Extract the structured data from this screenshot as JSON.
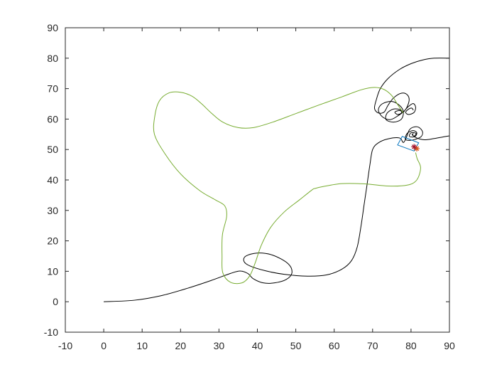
{
  "chart_data": {
    "type": "line",
    "title": "",
    "xlabel": "",
    "ylabel": "",
    "xlim": [
      -10,
      90
    ],
    "ylim": [
      -10,
      90
    ],
    "xticks": [
      -10,
      0,
      10,
      20,
      30,
      40,
      50,
      60,
      70,
      80,
      90
    ],
    "yticks": [
      -10,
      0,
      10,
      20,
      30,
      40,
      50,
      60,
      70,
      80,
      90
    ],
    "xtick_labels": [
      "-10",
      "0",
      "10",
      "20",
      "30",
      "40",
      "50",
      "60",
      "70",
      "80",
      "90"
    ],
    "ytick_labels": [
      "-10",
      "0",
      "10",
      "20",
      "30",
      "40",
      "50",
      "60",
      "70",
      "80",
      "90"
    ],
    "grid": false,
    "legend": "none",
    "series": [
      {
        "color": "#000000",
        "points": [
          [
            0,
            0
          ],
          [
            8,
            0.5
          ],
          [
            15,
            2
          ],
          [
            22,
            4.5
          ],
          [
            28,
            7
          ],
          [
            33,
            9.3
          ],
          [
            35.5,
            10.1
          ],
          [
            37.5,
            9.3
          ],
          [
            39,
            7.5
          ],
          [
            41.5,
            6.2
          ],
          [
            44.5,
            6.2
          ],
          [
            47.5,
            7.3
          ],
          [
            49,
            9.5
          ],
          [
            48,
            12.5
          ],
          [
            44,
            15.3
          ],
          [
            40,
            16
          ],
          [
            37,
            15
          ],
          [
            36.5,
            13.3
          ],
          [
            38,
            11.8
          ],
          [
            42,
            10.2
          ],
          [
            47,
            9
          ],
          [
            53,
            8.4
          ],
          [
            58,
            8.8
          ],
          [
            62,
            10.7
          ],
          [
            64.5,
            13.5
          ],
          [
            66,
            18
          ],
          [
            67,
            25
          ],
          [
            67.8,
            32
          ],
          [
            68.5,
            38
          ],
          [
            69.3,
            45
          ],
          [
            70,
            50
          ],
          [
            71.5,
            52.2
          ],
          [
            74,
            53.5
          ],
          [
            77,
            53.8
          ],
          [
            78,
            52.3
          ],
          [
            78.8,
            54
          ],
          [
            79.5,
            56.3
          ],
          [
            80.5,
            57.3
          ],
          [
            82,
            57.3
          ],
          [
            83,
            55.8
          ],
          [
            82.6,
            54.2
          ],
          [
            81,
            53.3
          ],
          [
            79.5,
            53
          ],
          [
            78.5,
            53.4
          ],
          [
            79,
            55.3
          ],
          [
            80.5,
            56.2
          ],
          [
            81.5,
            55.5
          ],
          [
            81,
            54.2
          ],
          [
            79.6,
            54.3
          ],
          [
            80,
            55.5
          ],
          [
            81.3,
            55.3
          ],
          [
            80.8,
            54.4
          ],
          [
            80.3,
            54.9
          ],
          [
            80.6,
            55.2
          ],
          [
            80.4,
            54.8
          ],
          [
            81.5,
            53.8
          ],
          [
            83.5,
            53.2
          ],
          [
            86,
            53.6
          ],
          [
            90,
            54.5
          ]
        ]
      },
      {
        "color": "#000000",
        "points": [
          [
            90,
            80
          ],
          [
            86,
            80
          ],
          [
            83,
            79.4
          ],
          [
            80,
            78.2
          ],
          [
            77,
            76.3
          ],
          [
            74,
            73.3
          ],
          [
            72,
            70
          ],
          [
            71,
            66.5
          ],
          [
            70.5,
            63.5
          ],
          [
            71.5,
            62
          ],
          [
            73,
            62.3
          ],
          [
            74,
            64.5
          ],
          [
            75.5,
            67
          ],
          [
            77.5,
            68.5
          ],
          [
            79,
            68
          ],
          [
            79.5,
            66
          ],
          [
            78.5,
            63
          ],
          [
            76.5,
            61
          ],
          [
            74.5,
            59.8
          ],
          [
            72.5,
            60.8
          ],
          [
            71.5,
            63
          ],
          [
            72.5,
            65
          ],
          [
            75,
            65.8
          ],
          [
            77,
            64.5
          ],
          [
            78,
            62.5
          ],
          [
            77.5,
            60
          ],
          [
            75.5,
            59
          ],
          [
            73.5,
            59.8
          ],
          [
            73.8,
            62
          ],
          [
            75.5,
            63.3
          ],
          [
            77.3,
            63
          ],
          [
            77.5,
            62
          ],
          [
            76.5,
            61.5
          ],
          [
            75.8,
            62.3
          ],
          [
            77,
            62.8
          ],
          [
            78,
            62.3
          ],
          [
            78.4,
            62.9
          ],
          [
            79.4,
            64.2
          ],
          [
            80.6,
            65.1
          ],
          [
            81.2,
            63.9
          ],
          [
            80.8,
            62.2
          ],
          [
            79.4,
            61.5
          ],
          [
            78.6,
            62.2
          ],
          [
            79.4,
            63.3
          ],
          [
            80.2,
            63.6
          ],
          [
            80.6,
            62.9
          ]
        ]
      },
      {
        "color": "#77ac30",
        "points": [
          [
            81.2,
            49
          ],
          [
            81.6,
            47
          ],
          [
            82.5,
            44
          ],
          [
            81.5,
            40
          ],
          [
            79,
            38.3
          ],
          [
            74,
            38
          ],
          [
            68,
            38.7
          ],
          [
            62,
            38.8
          ],
          [
            57,
            37.8
          ],
          [
            55,
            37.2
          ],
          [
            54.3,
            36.8
          ],
          [
            51,
            33.5
          ],
          [
            47,
            29.5
          ],
          [
            43.5,
            24.5
          ],
          [
            41,
            18.5
          ],
          [
            39.5,
            13
          ],
          [
            38,
            8.5
          ],
          [
            36,
            6.2
          ],
          [
            33,
            6.4
          ],
          [
            31,
            9.5
          ],
          [
            30.8,
            15
          ],
          [
            30.9,
            22
          ],
          [
            32,
            28
          ],
          [
            31.5,
            31.5
          ],
          [
            29,
            33.5
          ],
          [
            25,
            36.5
          ],
          [
            20,
            42
          ],
          [
            16,
            48.5
          ],
          [
            13.2,
            55
          ],
          [
            13.3,
            61
          ],
          [
            14.5,
            66
          ],
          [
            17,
            68.6
          ],
          [
            20,
            68.8
          ],
          [
            23,
            67.5
          ],
          [
            25.5,
            65
          ],
          [
            28,
            62
          ],
          [
            31,
            59
          ],
          [
            35,
            57.2
          ],
          [
            39,
            57.2
          ],
          [
            44,
            59
          ],
          [
            50,
            61.8
          ],
          [
            56,
            64.6
          ],
          [
            62,
            67.3
          ],
          [
            67,
            69.6
          ],
          [
            70.5,
            70.4
          ],
          [
            73,
            69.7
          ],
          [
            75,
            67.7
          ],
          [
            76.5,
            64.8
          ],
          [
            78,
            62
          ]
        ]
      }
    ],
    "markers": {
      "box": {
        "corners": [
          [
            76.5,
            51.5
          ],
          [
            80.8,
            49.5
          ],
          [
            82,
            52.2
          ],
          [
            77.7,
            54.3
          ]
        ],
        "color": "#0072bd"
      },
      "asterisks": [
        {
          "x": 81.5,
          "y": 50.3,
          "color": "#d95319"
        },
        {
          "x": 80.8,
          "y": 50.9,
          "color": "#a2142f"
        }
      ]
    }
  }
}
